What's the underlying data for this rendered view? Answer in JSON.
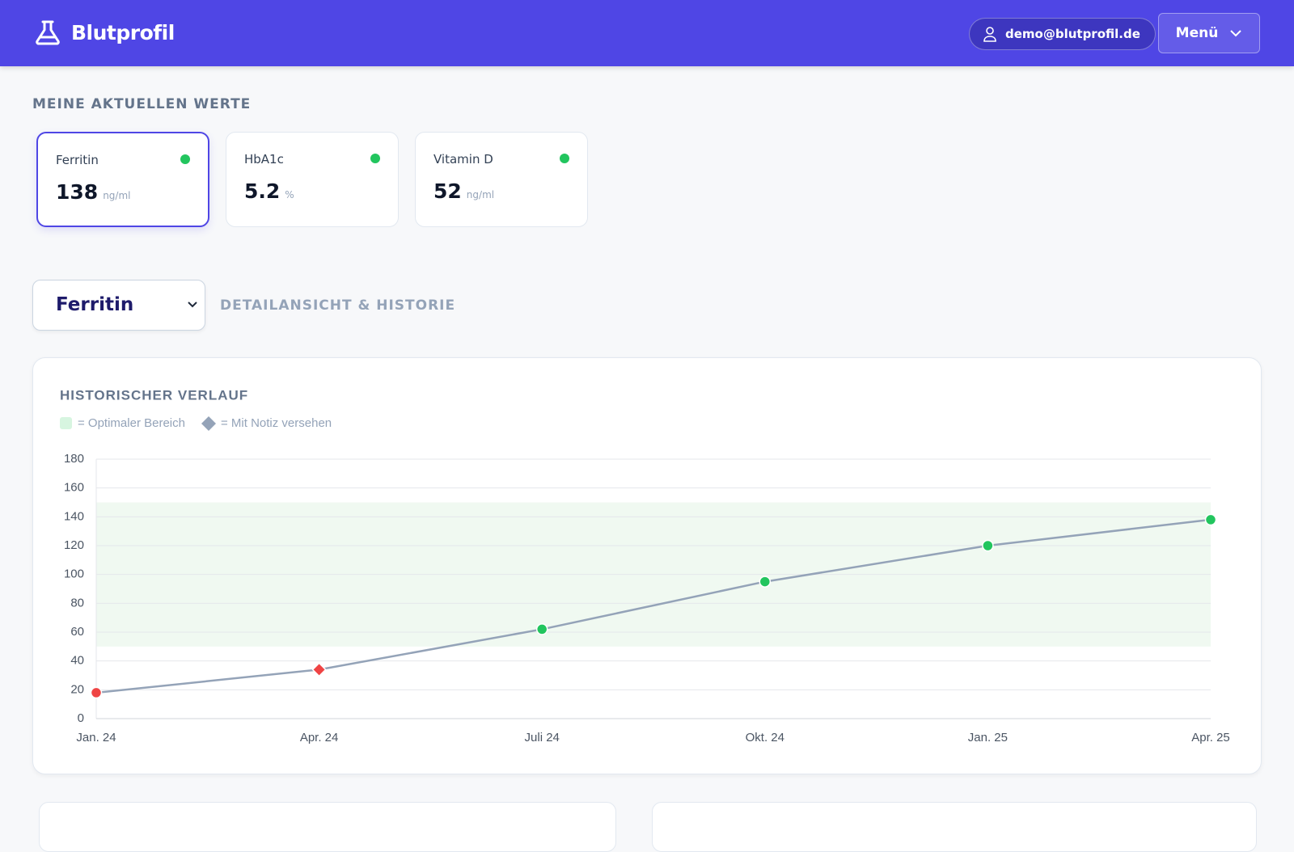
{
  "header": {
    "brand": "Blutprofil",
    "user": "demo@blutprofil.de",
    "menu": "Menü"
  },
  "current": {
    "title": "MEINE AKTUELLEN WERTE",
    "cards": [
      {
        "name": "Ferritin",
        "value": 138,
        "unit": "ng/ml"
      },
      {
        "name": "HbA1c",
        "value": 5.2,
        "unit": "%"
      },
      {
        "name": "Vitamin D",
        "value": 52,
        "unit": "ng/ml"
      }
    ]
  },
  "detail": {
    "selected": "Ferritin",
    "subtitle": "DETAILANSICHT & HISTORIE"
  },
  "chart_data": {
    "type": "line",
    "title": "HISTORISCHER VERLAUF",
    "legend": [
      "= Optimaler Bereich",
      "= Mit Notiz versehen"
    ],
    "categories": [
      "Jan. 24",
      "Apr. 24",
      "Juli 24",
      "Okt. 24",
      "Jan. 25",
      "Apr. 25"
    ],
    "values": [
      18,
      34,
      62,
      95,
      120,
      138
    ],
    "color": "#94a3b8",
    "point_colors": [
      "#ef4444",
      "#ef4444",
      "#22c55e",
      "#22c55e",
      "#22c55e",
      "#22c55e"
    ],
    "noted_points": [
      1
    ],
    "optimal_range": [
      50,
      150
    ],
    "optimal_color": "#f0f9f1",
    "ylim": [
      0,
      180
    ],
    "yticks": [
      0,
      20,
      40,
      60,
      80,
      100,
      120,
      140,
      160,
      180
    ],
    "grid": true
  }
}
